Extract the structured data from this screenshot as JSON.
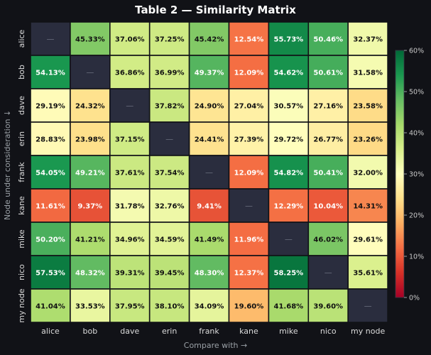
{
  "title": "Table 2 — Similarity Matrix",
  "chart_data": {
    "type": "heatmap",
    "title": "Table 2 — Similarity Matrix",
    "xlabel": "Compare with →",
    "ylabel": "Node under consideration ↓",
    "columns": [
      "alice",
      "bob",
      "dave",
      "erin",
      "frank",
      "kane",
      "mike",
      "nico",
      "my node"
    ],
    "rows": [
      "alice",
      "bob",
      "dave",
      "erin",
      "frank",
      "kane",
      "mike",
      "nico",
      "my node"
    ],
    "diagonal_label": "—",
    "values": [
      [
        null,
        45.33,
        37.06,
        37.25,
        45.42,
        12.54,
        55.73,
        50.46,
        32.37
      ],
      [
        54.13,
        null,
        36.86,
        36.99,
        49.37,
        12.09,
        54.62,
        50.61,
        31.58
      ],
      [
        29.19,
        24.32,
        null,
        37.82,
        24.9,
        27.04,
        30.57,
        27.16,
        23.58
      ],
      [
        28.83,
        23.98,
        37.15,
        null,
        24.41,
        27.39,
        29.72,
        26.77,
        23.26
      ],
      [
        54.05,
        49.21,
        37.61,
        37.54,
        null,
        12.09,
        54.82,
        50.41,
        32.0
      ],
      [
        11.61,
        9.37,
        31.78,
        32.76,
        9.41,
        null,
        12.29,
        10.04,
        14.31
      ],
      [
        50.2,
        41.21,
        34.96,
        34.59,
        41.49,
        11.96,
        null,
        46.02,
        29.61
      ],
      [
        57.53,
        48.32,
        39.31,
        39.45,
        48.3,
        12.37,
        58.25,
        null,
        35.61
      ],
      [
        41.04,
        33.53,
        37.95,
        38.1,
        34.09,
        19.6,
        41.68,
        39.6,
        null
      ]
    ],
    "unit": "%",
    "colorbar": {
      "min": 0,
      "max": 60,
      "ticks": [
        0,
        10,
        20,
        30,
        40,
        50,
        60
      ],
      "tick_labels": [
        "0%",
        "10%",
        "20%",
        "30%",
        "40%",
        "50%",
        "60%"
      ],
      "colormap": "RdYlGn"
    },
    "colors": {
      "diagonal": "#2a2d3e",
      "background": "#111217",
      "grid": "#111217"
    }
  }
}
